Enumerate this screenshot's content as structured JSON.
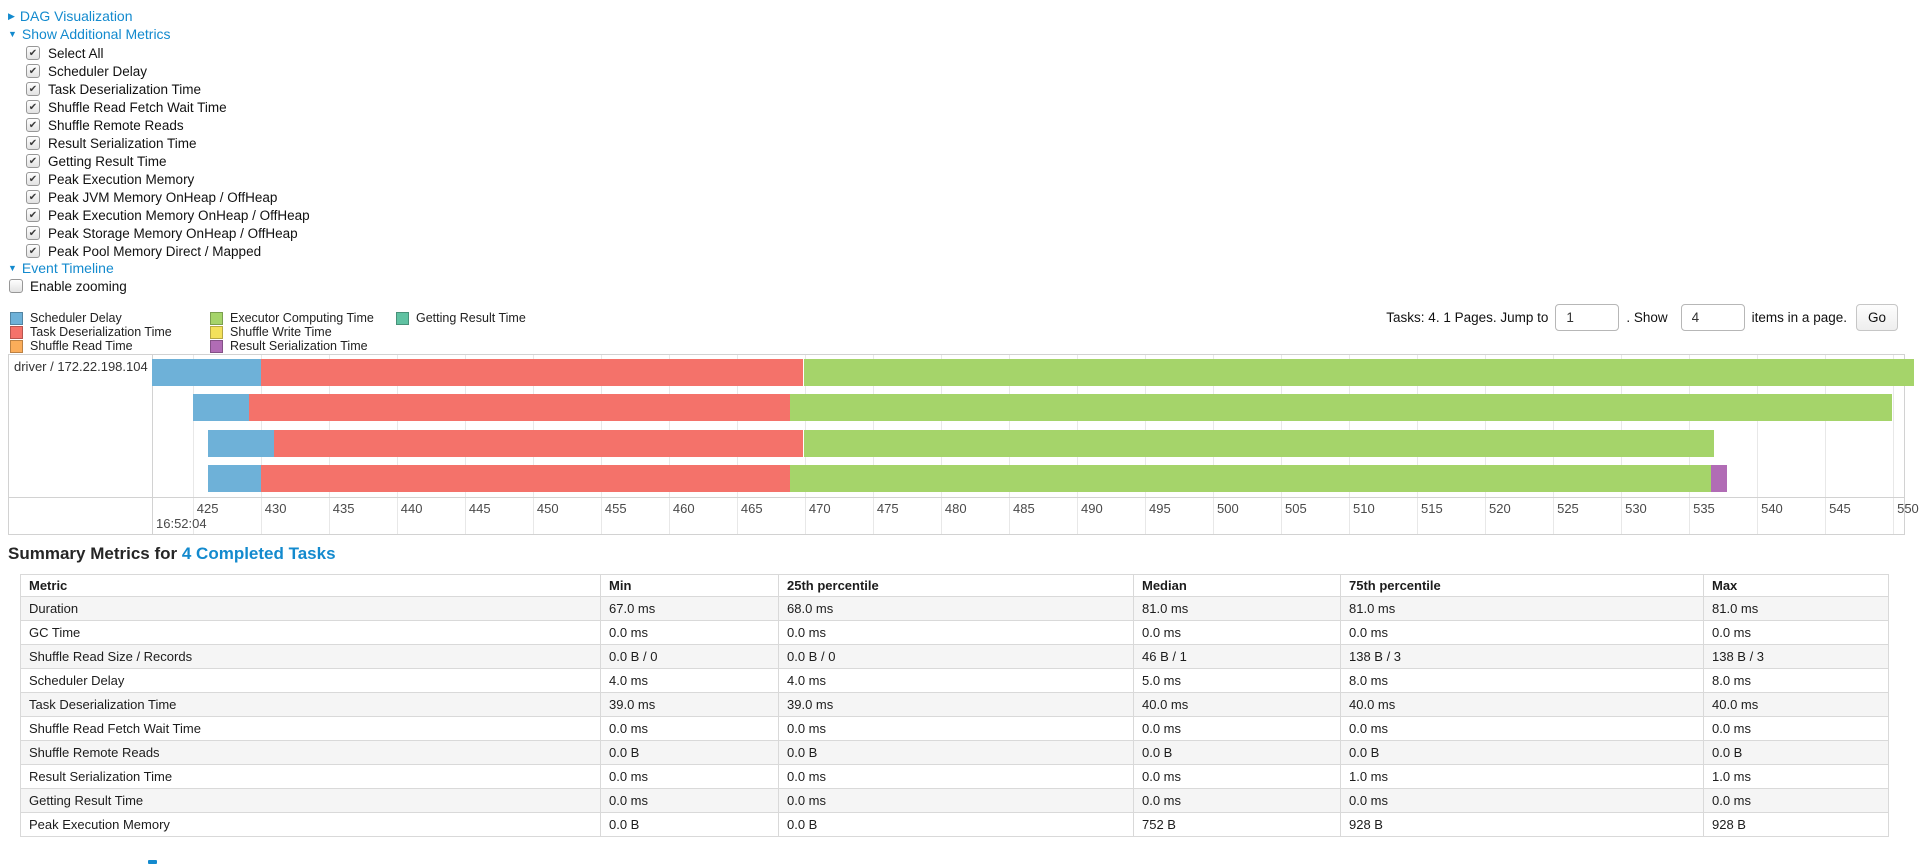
{
  "colors": {
    "scheduler_delay": "#6eb1d8",
    "task_deserialization": "#f4726a",
    "shuffle_read": "#fbad5a",
    "executor_computing": "#a5d46a",
    "shuffle_write": "#f3e15b",
    "result_serialization": "#b16cb5",
    "getting_result": "#60c2a2",
    "link": "#138ace"
  },
  "controls": {
    "dag_label": "DAG Visualization",
    "metrics_label": "Show Additional Metrics",
    "checkboxes": [
      {
        "label": "Select All",
        "checked": true
      },
      {
        "label": "Scheduler Delay",
        "checked": true
      },
      {
        "label": "Task Deserialization Time",
        "checked": true
      },
      {
        "label": "Shuffle Read Fetch Wait Time",
        "checked": true
      },
      {
        "label": "Shuffle Remote Reads",
        "checked": true
      },
      {
        "label": "Result Serialization Time",
        "checked": true
      },
      {
        "label": "Getting Result Time",
        "checked": true
      },
      {
        "label": "Peak Execution Memory",
        "checked": true
      },
      {
        "label": "Peak JVM Memory OnHeap / OffHeap",
        "checked": true
      },
      {
        "label": "Peak Execution Memory OnHeap / OffHeap",
        "checked": true
      },
      {
        "label": "Peak Storage Memory OnHeap / OffHeap",
        "checked": true
      },
      {
        "label": "Peak Pool Memory Direct / Mapped",
        "checked": true
      }
    ],
    "event_timeline_label": "Event Timeline",
    "enable_zooming": {
      "label": "Enable zooming",
      "checked": false
    }
  },
  "legend": {
    "columns": [
      [
        {
          "label": "Scheduler Delay",
          "key": "scheduler_delay"
        },
        {
          "label": "Task Deserialization Time",
          "key": "task_deserialization"
        },
        {
          "label": "Shuffle Read Time",
          "key": "shuffle_read"
        }
      ],
      [
        {
          "label": "Executor Computing Time",
          "key": "executor_computing"
        },
        {
          "label": "Shuffle Write Time",
          "key": "shuffle_write"
        },
        {
          "label": "Result Serialization Time",
          "key": "result_serialization"
        }
      ],
      [
        {
          "label": "Getting Result Time",
          "key": "getting_result"
        }
      ]
    ]
  },
  "pagination": {
    "tasks_label": "Tasks: 4. 1 Pages. Jump to",
    "jump_value": "1",
    "show_label": ". Show",
    "show_value": "4",
    "items_label": "items in a page.",
    "go_label": "Go"
  },
  "chart_data": {
    "type": "timeline",
    "group_label": "driver / 172.22.198.104",
    "axis": {
      "start": 422.0,
      "end": 550.8,
      "tick_step": 5,
      "ticks": [
        425,
        430,
        435,
        440,
        445,
        450,
        455,
        460,
        465,
        470,
        475,
        480,
        485,
        490,
        495,
        500,
        505,
        510,
        515,
        520,
        525,
        530,
        535,
        540,
        545,
        550
      ],
      "unit": "ms within second",
      "major_label": "16:52:04"
    },
    "tasks": [
      {
        "segments": [
          {
            "type": "scheduler_delay",
            "start": 422.0,
            "end": 430.0
          },
          {
            "type": "task_deserialization",
            "start": 430.0,
            "end": 469.9
          },
          {
            "type": "executor_computing",
            "start": 469.9,
            "end": 551.5
          }
        ]
      },
      {
        "segments": [
          {
            "type": "scheduler_delay",
            "start": 425.0,
            "end": 429.1
          },
          {
            "type": "task_deserialization",
            "start": 429.1,
            "end": 468.9
          },
          {
            "type": "executor_computing",
            "start": 468.9,
            "end": 549.9
          }
        ]
      },
      {
        "segments": [
          {
            "type": "scheduler_delay",
            "start": 426.1,
            "end": 431.0
          },
          {
            "type": "task_deserialization",
            "start": 431.0,
            "end": 469.9
          },
          {
            "type": "executor_computing",
            "start": 469.9,
            "end": 536.8
          }
        ]
      },
      {
        "segments": [
          {
            "type": "scheduler_delay",
            "start": 426.1,
            "end": 430.0
          },
          {
            "type": "task_deserialization",
            "start": 430.0,
            "end": 468.9
          },
          {
            "type": "executor_computing",
            "start": 468.9,
            "end": 536.6
          },
          {
            "type": "result_serialization",
            "start": 536.6,
            "end": 537.8
          }
        ]
      }
    ]
  },
  "summary": {
    "title": "Summary Metrics for",
    "title_link": "4 Completed Tasks",
    "table": {
      "headers": [
        "Metric",
        "Min",
        "25th percentile",
        "Median",
        "75th percentile",
        "Max"
      ],
      "rows": [
        [
          "Duration",
          "67.0 ms",
          "68.0 ms",
          "81.0 ms",
          "81.0 ms",
          "81.0 ms"
        ],
        [
          "GC Time",
          "0.0 ms",
          "0.0 ms",
          "0.0 ms",
          "0.0 ms",
          "0.0 ms"
        ],
        [
          "Shuffle Read Size / Records",
          "0.0 B / 0",
          "0.0 B / 0",
          "46 B / 1",
          "138 B / 3",
          "138 B / 3"
        ],
        [
          "Scheduler Delay",
          "4.0 ms",
          "4.0 ms",
          "5.0 ms",
          "8.0 ms",
          "8.0 ms"
        ],
        [
          "Task Deserialization Time",
          "39.0 ms",
          "39.0 ms",
          "40.0 ms",
          "40.0 ms",
          "40.0 ms"
        ],
        [
          "Shuffle Read Fetch Wait Time",
          "0.0 ms",
          "0.0 ms",
          "0.0 ms",
          "0.0 ms",
          "0.0 ms"
        ],
        [
          "Shuffle Remote Reads",
          "0.0 B",
          "0.0 B",
          "0.0 B",
          "0.0 B",
          "0.0 B"
        ],
        [
          "Result Serialization Time",
          "0.0 ms",
          "0.0 ms",
          "0.0 ms",
          "1.0 ms",
          "1.0 ms"
        ],
        [
          "Getting Result Time",
          "0.0 ms",
          "0.0 ms",
          "0.0 ms",
          "0.0 ms",
          "0.0 ms"
        ],
        [
          "Peak Execution Memory",
          "0.0 B",
          "0.0 B",
          "752 B",
          "928 B",
          "928 B"
        ]
      ]
    }
  }
}
